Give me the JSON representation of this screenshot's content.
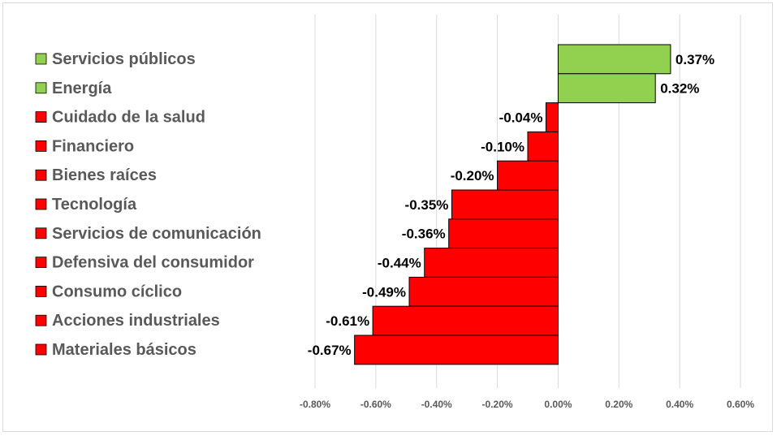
{
  "chart_data": {
    "type": "bar",
    "orientation": "horizontal",
    "title": "",
    "xlabel": "",
    "ylabel": "",
    "xlim": [
      -0.8,
      0.6
    ],
    "ticks": [
      -0.8,
      -0.6,
      -0.4,
      -0.2,
      0.0,
      0.2,
      0.4,
      0.6
    ],
    "tick_labels": [
      "-0.80%",
      "-0.60%",
      "-0.40%",
      "-0.20%",
      "0.00%",
      "0.20%",
      "0.40%",
      "0.60%"
    ],
    "grid": "vertical",
    "legend_position": "left",
    "positive_color": "#92d050",
    "negative_color": "#ff0000",
    "categories": [
      "Servicios públicos",
      "Energía",
      "Cuidado de la salud",
      "Financiero",
      "Bienes raíces",
      "Tecnología",
      "Servicios de comunicación",
      "Defensiva del consumidor",
      "Consumo cíclico",
      "Acciones industriales",
      "Materiales básicos"
    ],
    "values": [
      0.37,
      0.32,
      -0.04,
      -0.1,
      -0.2,
      -0.35,
      -0.36,
      -0.44,
      -0.49,
      -0.61,
      -0.67
    ],
    "value_labels": [
      "0.37%",
      "0.32%",
      "-0.04%",
      "-0.10%",
      "-0.20%",
      "-0.35%",
      "-0.36%",
      "-0.44%",
      "-0.49%",
      "-0.61%",
      "-0.67%"
    ]
  }
}
